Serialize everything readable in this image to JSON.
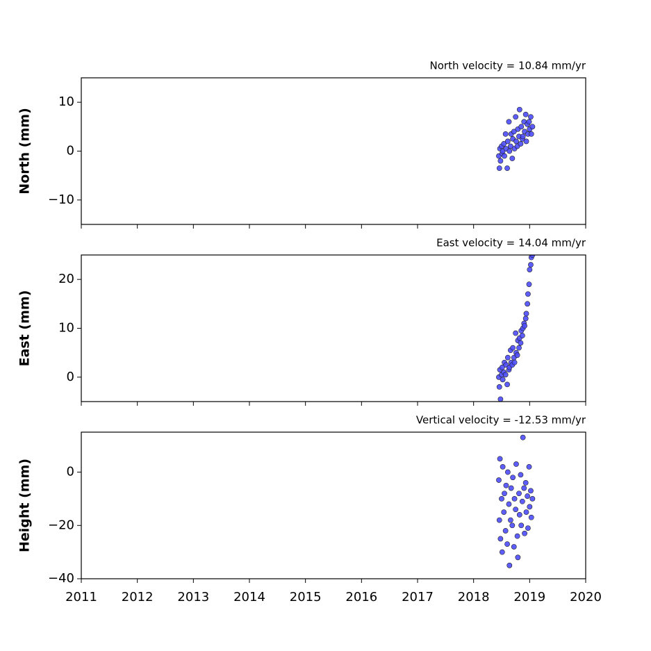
{
  "chart_data": [
    {
      "type": "scatter",
      "title": "North velocity = 10.84 mm/yr",
      "y_label": "North (mm)",
      "color": "#4d4dff",
      "xlim": [
        2011,
        2020
      ],
      "xticks": [
        2011,
        2012,
        2013,
        2014,
        2015,
        2016,
        2017,
        2018,
        2019,
        2020
      ],
      "ylim": [
        -15,
        15
      ],
      "yticks": [
        {
          "value": -10,
          "label": "−10"
        },
        0,
        10
      ],
      "x": [
        2018.45,
        2018.46,
        2018.47,
        2018.48,
        2018.5,
        2018.51,
        2018.52,
        2018.54,
        2018.55,
        2018.57,
        2018.58,
        2018.6,
        2018.61,
        2018.63,
        2018.64,
        2018.66,
        2018.67,
        2018.69,
        2018.7,
        2018.72,
        2018.73,
        2018.75,
        2018.76,
        2018.78,
        2018.79,
        2018.81,
        2018.82,
        2018.84,
        2018.85,
        2018.87,
        2018.88,
        2018.9,
        2018.91,
        2018.93,
        2018.94,
        2018.96,
        2018.97,
        2018.99,
        2019.0,
        2019.02,
        2019.03,
        2019.05
      ],
      "values": [
        -1,
        -3.5,
        0.5,
        -2,
        1,
        -0.5,
        0,
        1.5,
        -1,
        3.5,
        0.5,
        -3.5,
        2,
        6,
        0,
        1,
        3.5,
        -1.5,
        2.5,
        4,
        0.5,
        7,
        2,
        1,
        4.5,
        3,
        8.5,
        1.5,
        5,
        2.5,
        3,
        6,
        4,
        7.5,
        2,
        5.5,
        3.5,
        6,
        4.5,
        7,
        3.5,
        5
      ]
    },
    {
      "type": "scatter",
      "title": "East velocity = 14.04 mm/yr",
      "y_label": "East (mm)",
      "color": "#4d4dff",
      "xlim": [
        2011,
        2020
      ],
      "xticks": [
        2011,
        2012,
        2013,
        2014,
        2015,
        2016,
        2017,
        2018,
        2019,
        2020
      ],
      "ylim": [
        -5,
        25
      ],
      "yticks": [
        0,
        10,
        20
      ],
      "x": [
        2018.45,
        2018.46,
        2018.47,
        2018.48,
        2018.5,
        2018.51,
        2018.52,
        2018.54,
        2018.55,
        2018.57,
        2018.58,
        2018.6,
        2018.61,
        2018.63,
        2018.64,
        2018.66,
        2018.67,
        2018.69,
        2018.7,
        2018.72,
        2018.73,
        2018.75,
        2018.76,
        2018.78,
        2018.79,
        2018.81,
        2018.82,
        2018.84,
        2018.85,
        2018.87,
        2018.88,
        2018.9,
        2018.91,
        2018.93,
        2018.94,
        2018.96,
        2018.97,
        2018.99,
        2019.0,
        2019.02,
        2019.03,
        2019.05
      ],
      "values": [
        0,
        -2,
        1.5,
        -4.5,
        0.5,
        2,
        -0.5,
        1,
        3,
        0.5,
        2.5,
        -1.5,
        4,
        1.5,
        2,
        5.5,
        3,
        2.5,
        6,
        4,
        3,
        9,
        5,
        4.5,
        7.5,
        6,
        8,
        7,
        9.5,
        8.5,
        10,
        11,
        10.5,
        12,
        13,
        15,
        17,
        19,
        22,
        23,
        24.5,
        25
      ]
    },
    {
      "type": "scatter",
      "title": "Vertical velocity = -12.53 mm/yr",
      "y_label": "Height (mm)",
      "color": "#4d4dff",
      "xlim": [
        2011,
        2020
      ],
      "xticks": [
        2011,
        2012,
        2013,
        2014,
        2015,
        2016,
        2017,
        2018,
        2019,
        2020
      ],
      "ylim": [
        -40,
        15
      ],
      "yticks": [
        {
          "value": -40,
          "label": "−40"
        },
        {
          "value": -20,
          "label": "−20"
        },
        0
      ],
      "x": [
        2018.45,
        2018.46,
        2018.47,
        2018.48,
        2018.5,
        2018.51,
        2018.52,
        2018.54,
        2018.55,
        2018.57,
        2018.58,
        2018.6,
        2018.61,
        2018.63,
        2018.64,
        2018.66,
        2018.67,
        2018.69,
        2018.7,
        2018.72,
        2018.73,
        2018.75,
        2018.76,
        2018.78,
        2018.79,
        2018.81,
        2018.82,
        2018.84,
        2018.85,
        2018.87,
        2018.88,
        2018.9,
        2018.91,
        2018.93,
        2018.94,
        2018.96,
        2018.97,
        2018.99,
        2019.0,
        2019.02,
        2019.03,
        2019.05
      ],
      "values": [
        -3,
        -18,
        5,
        -25,
        -10,
        -30,
        2,
        -15,
        -8,
        -22,
        -5,
        -27,
        0,
        -12,
        -35,
        -18,
        -6,
        -20,
        -2,
        -28,
        -10,
        -14,
        3,
        -24,
        -32,
        -8,
        -16,
        -1,
        -20,
        -11,
        13,
        -6,
        -23,
        -4,
        -15,
        -9,
        -21,
        2,
        -13,
        -7,
        -17,
        -10
      ]
    }
  ]
}
